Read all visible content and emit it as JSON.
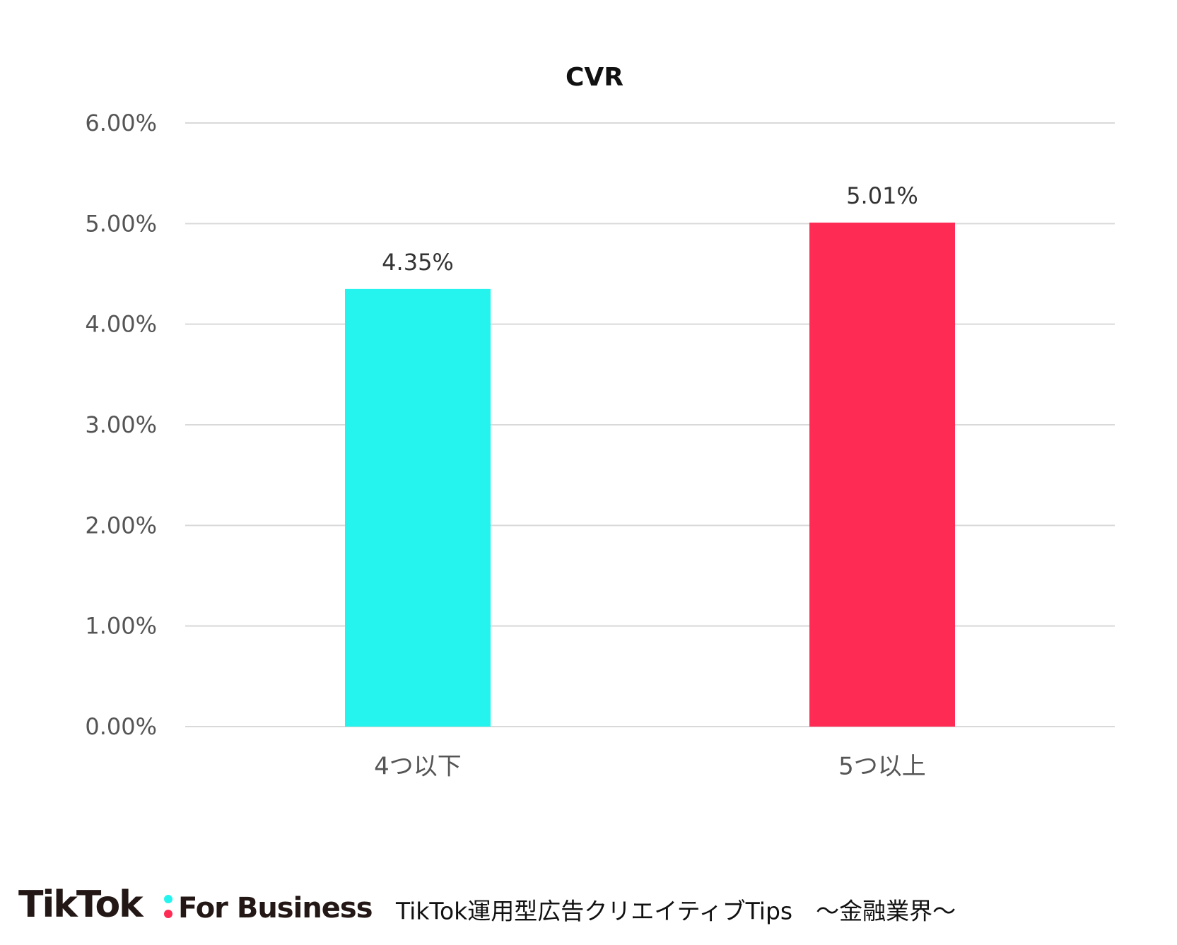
{
  "chart_data": {
    "type": "bar",
    "title": "CVR",
    "categories": [
      "4つ以下",
      "5つ以上"
    ],
    "values": [
      4.35,
      5.01
    ],
    "value_labels": [
      "4.35%",
      "5.01%"
    ],
    "colors": [
      "#25f4ee",
      "#fe2c55"
    ],
    "ylim": [
      0,
      6
    ],
    "yticks": [
      {
        "value": 0,
        "label": "0.00%"
      },
      {
        "value": 1,
        "label": "1.00%"
      },
      {
        "value": 2,
        "label": "2.00%"
      },
      {
        "value": 3,
        "label": "3.00%"
      },
      {
        "value": 4,
        "label": "4.00%"
      },
      {
        "value": 5,
        "label": "5.00%"
      },
      {
        "value": 6,
        "label": "6.00%"
      }
    ],
    "grid": true
  },
  "footer": {
    "brand": "TikTok",
    "brand_suffix": "For Business",
    "caption": "TikTok運用型広告クリエイティブTips　～金融業界～"
  }
}
